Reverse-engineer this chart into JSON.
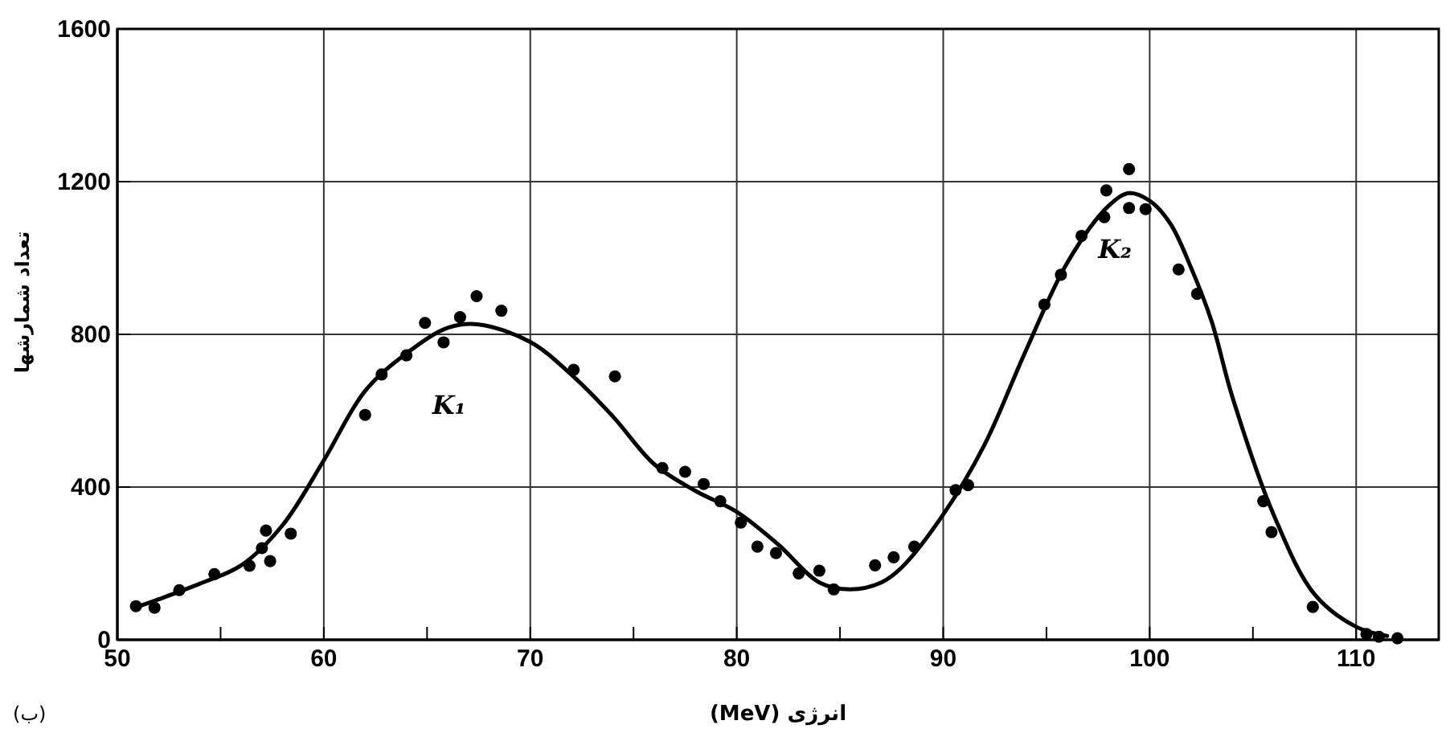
{
  "chart_data": {
    "type": "scatter",
    "xlabel": "انرژی (MeV)",
    "ylabel": "تعداد شمارشها",
    "xlim": [
      50,
      114
    ],
    "ylim": [
      0,
      1600
    ],
    "xticks": [
      50,
      {
        "value": 55,
        "label": null
      },
      60,
      {
        "value": 65,
        "label": null
      },
      70,
      {
        "value": 75,
        "label": null
      },
      80,
      {
        "value": 85,
        "label": null
      },
      90,
      {
        "value": 95,
        "label": null
      },
      100,
      {
        "value": 105,
        "label": null
      },
      110
    ],
    "yticks": [
      0,
      400,
      800,
      1200,
      1600
    ],
    "grid": true,
    "marker": "circle",
    "series": [
      {
        "color": "#000000",
        "x": [
          50.9,
          51.8,
          53.0,
          54.7,
          56.4,
          57.0,
          57.2,
          57.4,
          58.4,
          62.0,
          62.8,
          64.0,
          64.9,
          65.8,
          66.6,
          67.4,
          68.6,
          72.1,
          74.1,
          76.4,
          77.5,
          78.4,
          79.2,
          80.2,
          81.0,
          81.9,
          83.0,
          84.0,
          84.7,
          86.7,
          87.6,
          88.6,
          90.6,
          91.2,
          94.9,
          95.7,
          96.7,
          97.8,
          97.9,
          99.0,
          99.0,
          99.8,
          101.4,
          102.3,
          105.5,
          105.9,
          107.9,
          110.5,
          111.1,
          112.0
        ],
        "values": [
          88,
          84,
          130,
          172,
          194,
          240,
          286,
          206,
          278,
          589,
          695,
          745,
          830,
          779,
          845,
          900,
          862,
          707,
          690,
          450,
          440,
          408,
          363,
          307,
          244,
          227,
          174,
          181,
          132,
          195,
          216,
          244,
          392,
          405,
          878,
          956,
          1058,
          1107,
          1177,
          1233,
          1131,
          1128,
          970,
          906,
          363,
          282,
          86,
          15,
          8,
          4
        ]
      },
      {
        "type": "line",
        "color": "#000000",
        "line_style": "solid",
        "marker": "none",
        "x": [
          50.9,
          52,
          54,
          56,
          58,
          60,
          62,
          64,
          66,
          67.5,
          70,
          72,
          74,
          76,
          78,
          80,
          82,
          84,
          85.5,
          87,
          88,
          90,
          92,
          94,
          96,
          98,
          99,
          100,
          101,
          102,
          103,
          104,
          106,
          108,
          110,
          111.5
        ],
        "values": [
          85,
          106,
          147,
          195,
          300,
          470,
          652,
          750,
          817,
          826,
          780,
          694,
          585,
          460,
          390,
          335,
          250,
          150,
          132,
          150,
          190,
          328,
          511,
          757,
          987,
          1136,
          1170,
          1150,
          1090,
          975,
          834,
          637,
          328,
          118,
          34,
          10
        ]
      }
    ],
    "annotations": [
      "K₁",
      "K₂",
      "(ب)"
    ]
  }
}
